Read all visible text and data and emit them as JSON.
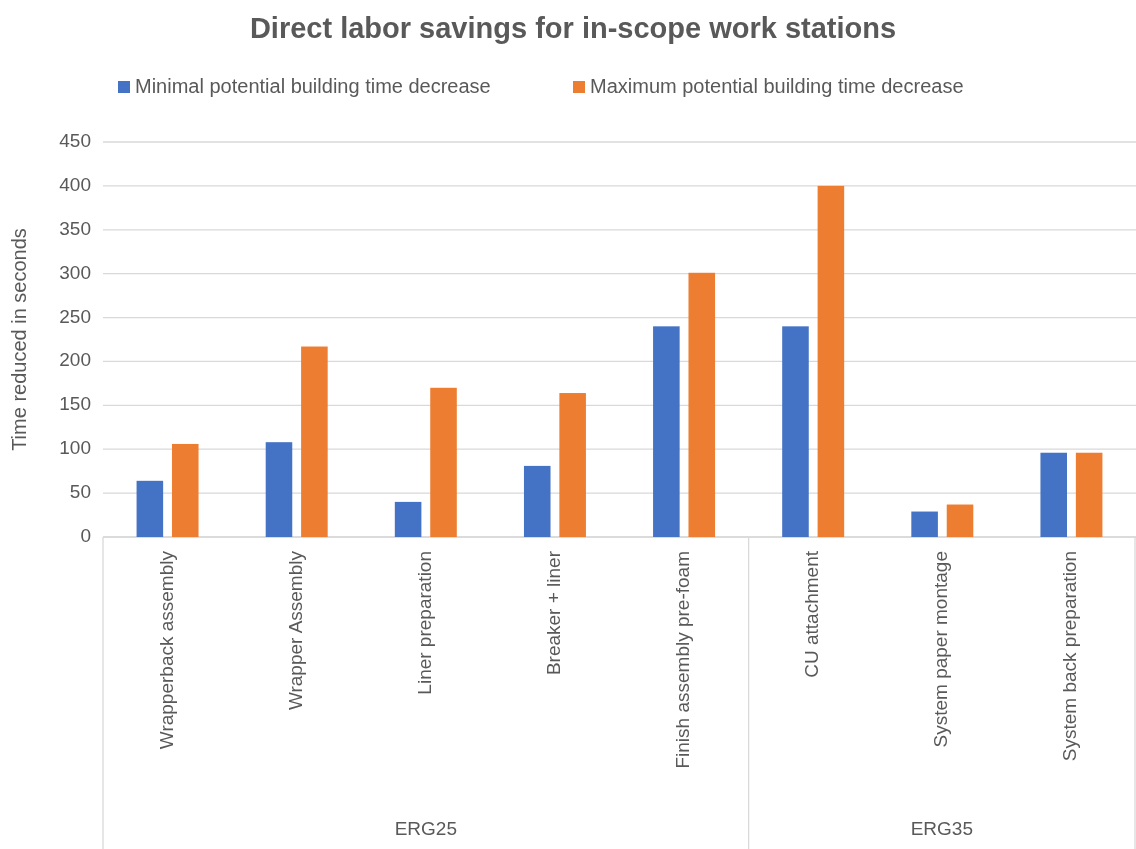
{
  "chart_data": {
    "type": "bar",
    "title": "Direct labor savings for in-scope work stations",
    "ylabel": "Time reduced in seconds",
    "categories": [
      "Wrapperback assembly",
      "Wrapper Assembly",
      "Liner preparation",
      "Breaker + liner",
      "Finish assembly  pre-foam",
      "CU attachment",
      "System paper montage",
      "System back preparation"
    ],
    "series": [
      {
        "name": "Minimal potential building time decrease",
        "color": "#4472c4",
        "values": [
          64,
          108,
          40,
          81,
          240,
          240,
          29,
          96
        ]
      },
      {
        "name": "Maximum potential building time decrease",
        "color": "#ed7d31",
        "values": [
          106,
          217,
          170,
          164,
          301,
          400,
          37,
          96
        ]
      }
    ],
    "annotations": [
      "ERG25",
      "ERG35"
    ],
    "ylim": [
      0,
      450
    ],
    "yticks": [
      0,
      50,
      100,
      150,
      200,
      250,
      300,
      350,
      400,
      450
    ],
    "grid": "y",
    "legend": "top"
  }
}
